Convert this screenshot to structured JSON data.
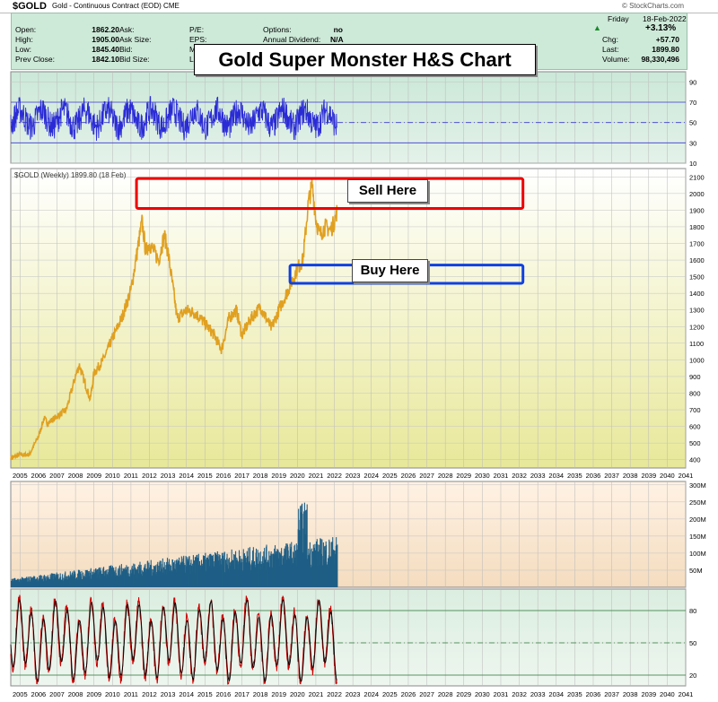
{
  "header": {
    "symbol": "$GOLD",
    "description": "Gold - Continuous Contract (EOD) CME",
    "brand": "© StockCharts.com",
    "day": "Friday",
    "date": "18-Feb-2022",
    "change_pct": "+3.13%",
    "fields": [
      {
        "label": "Open:",
        "value": "1862.20"
      },
      {
        "label": "High:",
        "value": "1905.00"
      },
      {
        "label": "Low:",
        "value": "1845.40"
      },
      {
        "label": "Prev Close:",
        "value": "1842.10"
      }
    ],
    "fields2": [
      {
        "label": "Ask:",
        "value": ""
      },
      {
        "label": "Ask Size:",
        "value": ""
      },
      {
        "label": "Bid:",
        "value": ""
      },
      {
        "label": "Bid Size:",
        "value": ""
      }
    ],
    "fields3": [
      {
        "label": "P/E:",
        "value": ""
      },
      {
        "label": "EPS:",
        "value": ""
      },
      {
        "label": "M",
        "value": ""
      },
      {
        "label": "La",
        "value": ""
      }
    ],
    "fields4": [
      {
        "label": "Options:",
        "value": "no"
      },
      {
        "label": "Annual Dividend:",
        "value": "N/A"
      }
    ],
    "right_fields": [
      {
        "label": "Chg:",
        "value": "+57.70"
      },
      {
        "label": "Last:",
        "value": "1899.80"
      },
      {
        "label": "Volume:",
        "value": "98,330,496"
      }
    ]
  },
  "annotations": {
    "title": "Gold Super Monster H&S Chart",
    "sell_label": "Sell Here",
    "buy_label": "Buy Here"
  },
  "colors": {
    "price_line": "#e0a020",
    "rsi_line": "#2b2bd6",
    "volume_bars": "#1f5f86",
    "stoch_fast": "#cc0000",
    "stoch_slow": "#000000",
    "sell_box": "#ee0000",
    "buy_box": "#1040e0"
  },
  "chart_data": [
    {
      "type": "line",
      "panel": "rsi",
      "ylim": [
        10,
        100
      ],
      "y_ticks": [
        10,
        30,
        50,
        70,
        90
      ],
      "reference_lines": [
        30,
        50,
        70
      ],
      "x_range": [
        2004.5,
        2041
      ],
      "data_end": 2022.15
    },
    {
      "type": "line",
      "panel": "price",
      "legend": "$GOLD (Weekly) 1899.80 (18 Feb)",
      "ylim": [
        350,
        2150
      ],
      "y_ticks": [
        400,
        500,
        600,
        700,
        800,
        900,
        1000,
        1100,
        1200,
        1300,
        1400,
        1500,
        1600,
        1700,
        1800,
        1900,
        2000,
        2100
      ],
      "x_range": [
        2004.5,
        2041
      ],
      "x_ticks": [
        "2005",
        "2006",
        "2007",
        "2008",
        "2009",
        "2010",
        "2011",
        "2012",
        "2013",
        "2014",
        "2015",
        "2016",
        "2017",
        "2018",
        "2019",
        "2020",
        "2021",
        "2022",
        "2023",
        "2024",
        "2025",
        "2026",
        "2027",
        "2028",
        "2029",
        "2030",
        "2031",
        "2032",
        "2033",
        "2034",
        "2035",
        "2036",
        "2037",
        "2038",
        "2039",
        "2040",
        "2041"
      ],
      "series": [
        {
          "x": [
            2004.5,
            2005,
            2005.5,
            2006,
            2006.3,
            2006.5,
            2007,
            2007.5,
            2008,
            2008.2,
            2008.8,
            2009,
            2009.5,
            2010,
            2010.5,
            2011,
            2011.6,
            2011.8,
            2012,
            2012.5,
            2012.8,
            2013,
            2013.5,
            2014,
            2014.5,
            2015,
            2015.5,
            2015.9,
            2016.3,
            2016.7,
            2017,
            2017.5,
            2018,
            2018.6,
            2019,
            2019.5,
            2020,
            2020.3,
            2020.6,
            2020.8,
            2021,
            2021.2,
            2021.5,
            2021.8,
            2022,
            2022.15
          ],
          "values": [
            410,
            430,
            430,
            540,
            650,
            620,
            660,
            700,
            900,
            970,
            760,
            920,
            1000,
            1130,
            1250,
            1420,
            1830,
            1650,
            1700,
            1600,
            1750,
            1650,
            1250,
            1300,
            1280,
            1220,
            1150,
            1060,
            1250,
            1300,
            1150,
            1250,
            1320,
            1190,
            1300,
            1420,
            1550,
            1600,
            1950,
            2050,
            1850,
            1750,
            1800,
            1780,
            1830,
            1900
          ]
        }
      ],
      "sell_zone": [
        1910,
        2090
      ],
      "sell_zone_x": [
        2011.3,
        2032.2
      ],
      "buy_zone": [
        1460,
        1570
      ],
      "buy_zone_x": [
        2019.6,
        2032.2
      ]
    },
    {
      "type": "bar",
      "panel": "volume",
      "ylim": [
        0,
        310
      ],
      "y_ticks": [
        50,
        100,
        150,
        200,
        250,
        300
      ],
      "y_tick_labels": [
        "50M",
        "100M",
        "150M",
        "200M",
        "250M",
        "300M"
      ],
      "x_range": [
        2004.5,
        2041
      ],
      "data_end": 2022.15
    },
    {
      "type": "line",
      "panel": "stochastic",
      "ylim": [
        10,
        100
      ],
      "y_ticks": [
        20,
        50,
        80
      ],
      "reference_lines": [
        20,
        50,
        80
      ],
      "x_range": [
        2004.5,
        2041
      ],
      "data_end": 2022.15
    }
  ]
}
